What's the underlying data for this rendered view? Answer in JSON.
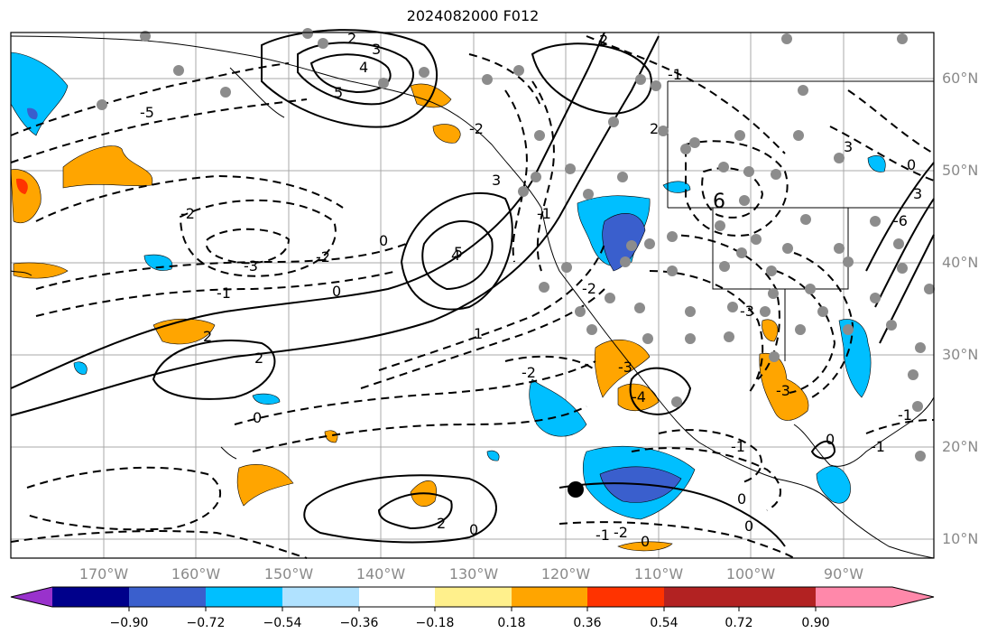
{
  "title": "2024082000 F012",
  "map": {
    "lat_labels": [
      "60°N",
      "50°N",
      "40°N",
      "30°N",
      "20°N",
      "10°N"
    ],
    "lon_labels": [
      "170°W",
      "160°W",
      "150°W",
      "140°W",
      "130°W",
      "120°W",
      "110°W",
      "100°W",
      "90°W"
    ],
    "contour_labels": [
      "2",
      "3",
      "4",
      "5",
      "-5",
      "6",
      "5",
      "2",
      "-2",
      "-3",
      "-1",
      "0",
      "-2",
      "1",
      "4",
      "2",
      "-2",
      "3",
      "0",
      "-1",
      "2",
      "-2",
      "-1",
      "0",
      "-2",
      "-1",
      "-3",
      "3",
      "0",
      "2",
      "0",
      "-1",
      "0",
      "-1",
      "-1",
      "0",
      "-4",
      "-3",
      "0",
      "2",
      "-2",
      "-6",
      "-3",
      "3",
      "0"
    ]
  },
  "colorbar": {
    "ticks": [
      "−0.90",
      "−0.72",
      "−0.54",
      "−0.36",
      "−0.18",
      "0.18",
      "0.36",
      "0.54",
      "0.72",
      "0.90"
    ],
    "colors": [
      "#9932cc",
      "#00008b",
      "#3a5fcd",
      "#00bfff",
      "#b0e2ff",
      "#ffffff",
      "#fff08c",
      "#ffa500",
      "#ff3300",
      "#b22222",
      "#ff88aa"
    ]
  }
}
